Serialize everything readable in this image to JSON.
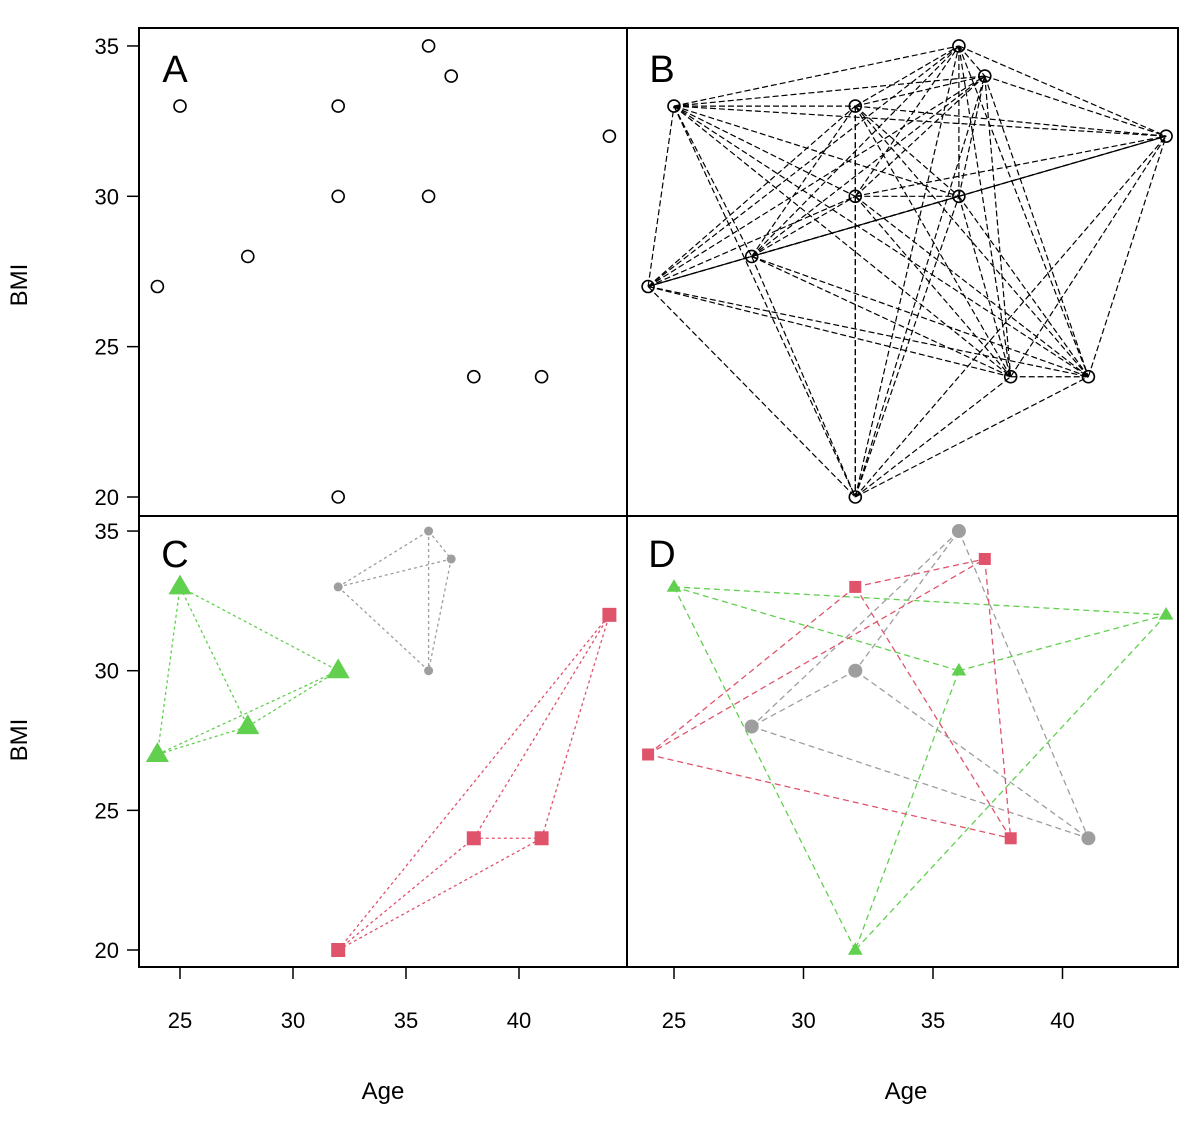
{
  "colors": {
    "axis": "#000000",
    "gray": "#9e9e9e",
    "green": "#61d04f",
    "red": "#df536b"
  },
  "axes": {
    "xlabel": "Age",
    "ylabel": "BMI",
    "x_ticks": [
      "25",
      "30",
      "35",
      "40"
    ],
    "y_ticks": [
      "20",
      "25",
      "30",
      "35"
    ]
  },
  "chart_data": [
    {
      "panel": "A",
      "type": "scatter",
      "xlabel": "Age",
      "ylabel": "BMI",
      "points": [
        {
          "x": 24,
          "y": 27
        },
        {
          "x": 25,
          "y": 33
        },
        {
          "x": 28,
          "y": 28
        },
        {
          "x": 32,
          "y": 33
        },
        {
          "x": 32,
          "y": 30
        },
        {
          "x": 32,
          "y": 20
        },
        {
          "x": 36,
          "y": 35
        },
        {
          "x": 36,
          "y": 30
        },
        {
          "x": 37,
          "y": 34
        },
        {
          "x": 38,
          "y": 24
        },
        {
          "x": 41,
          "y": 24
        },
        {
          "x": 44,
          "y": 32
        }
      ]
    },
    {
      "panel": "B",
      "type": "scatter",
      "note": "complete graph: every pair of points connected by a dashed line",
      "points": [
        {
          "x": 24,
          "y": 27
        },
        {
          "x": 25,
          "y": 33
        },
        {
          "x": 28,
          "y": 28
        },
        {
          "x": 32,
          "y": 33
        },
        {
          "x": 32,
          "y": 30
        },
        {
          "x": 32,
          "y": 20
        },
        {
          "x": 36,
          "y": 35
        },
        {
          "x": 36,
          "y": 30
        },
        {
          "x": 37,
          "y": 34
        },
        {
          "x": 38,
          "y": 24
        },
        {
          "x": 41,
          "y": 24
        },
        {
          "x": 44,
          "y": 32
        }
      ],
      "solid_edges": [
        [
          [
            24,
            27
          ],
          [
            28,
            28
          ]
        ],
        [
          [
            28,
            28
          ],
          [
            44,
            32
          ]
        ]
      ]
    },
    {
      "panel": "C",
      "type": "scatter",
      "xlabel": "Age",
      "ylabel": "BMI",
      "groups": [
        {
          "color": "green",
          "marker": "triangle",
          "points": [
            {
              "x": 24,
              "y": 27
            },
            {
              "x": 25,
              "y": 33
            },
            {
              "x": 28,
              "y": 28
            },
            {
              "x": 32,
              "y": 30
            }
          ]
        },
        {
          "color": "gray",
          "marker": "circle",
          "points": [
            {
              "x": 32,
              "y": 33
            },
            {
              "x": 36,
              "y": 35
            },
            {
              "x": 37,
              "y": 34
            },
            {
              "x": 36,
              "y": 30
            }
          ]
        },
        {
          "color": "red",
          "marker": "square",
          "points": [
            {
              "x": 32,
              "y": 20
            },
            {
              "x": 38,
              "y": 24
            },
            {
              "x": 41,
              "y": 24
            },
            {
              "x": 44,
              "y": 32
            }
          ]
        }
      ]
    },
    {
      "panel": "D",
      "type": "scatter",
      "xlabel": "Age",
      "groups": [
        {
          "color": "green",
          "marker": "triangle",
          "points": [
            {
              "x": 25,
              "y": 33
            },
            {
              "x": 36,
              "y": 30
            },
            {
              "x": 44,
              "y": 32
            },
            {
              "x": 32,
              "y": 20
            }
          ]
        },
        {
          "color": "gray",
          "marker": "circle",
          "points": [
            {
              "x": 36,
              "y": 35
            },
            {
              "x": 32,
              "y": 30
            },
            {
              "x": 28,
              "y": 28
            },
            {
              "x": 41,
              "y": 24
            }
          ]
        },
        {
          "color": "red",
          "marker": "square",
          "points": [
            {
              "x": 24,
              "y": 27
            },
            {
              "x": 32,
              "y": 33
            },
            {
              "x": 37,
              "y": 34
            },
            {
              "x": 38,
              "y": 24
            }
          ]
        }
      ]
    }
  ]
}
